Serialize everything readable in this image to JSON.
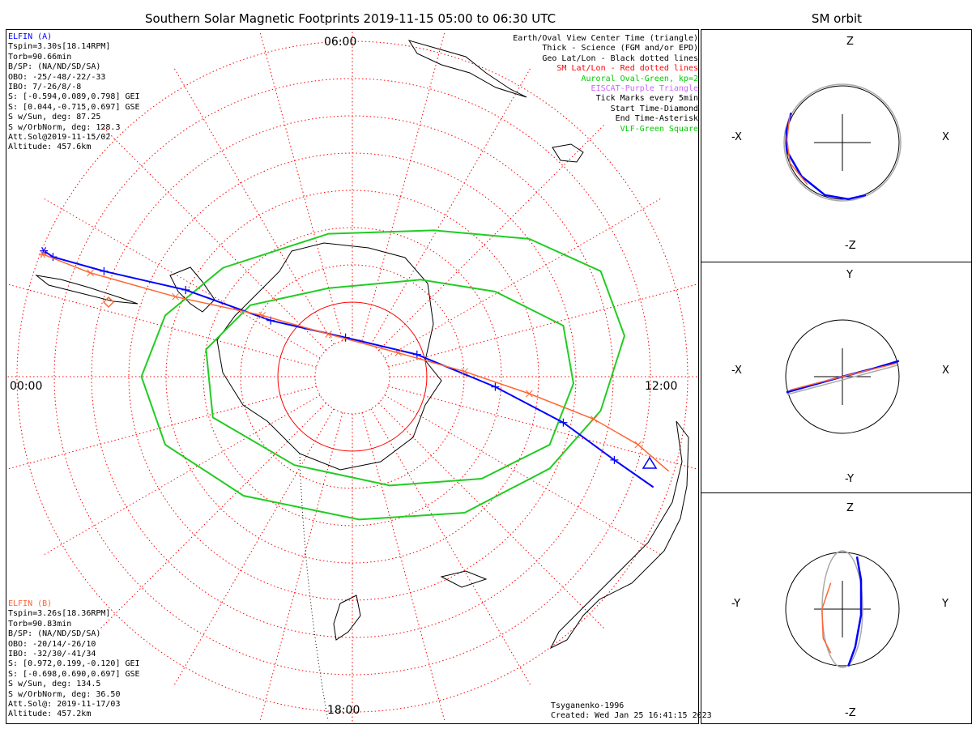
{
  "title": "Southern Solar Magnetic Footprints 2019-11-15 05:00 to 06:30 UTC",
  "orbit_title": "SM orbit",
  "hour_labels": {
    "top": "06:00",
    "left": "00:00",
    "right": "12:00",
    "bottom": "18:00"
  },
  "legend": [
    {
      "text": "Earth/Oval View Center Time (triangle)",
      "color": "#000000"
    },
    {
      "text": "Thick - Science (FGM and/or EPD)",
      "color": "#000000"
    },
    {
      "text": "Geo Lat/Lon - Black dotted lines",
      "color": "#000000"
    },
    {
      "text": "SM Lat/Lon - Red dotted lines",
      "color": "#ff0000"
    },
    {
      "text": "Auroral Oval-Green, kp=2",
      "color": "#00cc00"
    },
    {
      "text": "EISCAT-Purple Triangle",
      "color": "#cc66ff"
    },
    {
      "text": "Tick Marks every 5min",
      "color": "#000000"
    },
    {
      "text": "Start Time-Diamond",
      "color": "#000000"
    },
    {
      "text": "End Time-Asterisk",
      "color": "#000000"
    },
    {
      "text": "VLF-Green Square",
      "color": "#00cc00"
    }
  ],
  "elfin_a": {
    "name": "ELFIN (A)",
    "color": "#0000ff",
    "lines": [
      "Tspin=3.30s[18.14RPM]",
      "Torb=90.66min",
      "B/SP: (NA/ND/SD/SA)",
      "OBO: -25/-48/-22/-33",
      "IBO: 7/-26/8/-8",
      "S: [-0.594,0.089,0.798] GEI",
      "S: [0.044,-0.715,0.697] GSE",
      "S w/Sun, deg: 87.25",
      "S w/OrbNorm, deg: 128.3",
      "Att.Sol@2019-11-15/02",
      "Altitude: 457.6km"
    ]
  },
  "elfin_b": {
    "name": "ELFIN (B)",
    "color": "#ff6633",
    "lines": [
      "Tspin=3.26s[18.36RPM]",
      "Torb=90.83min",
      "B/SP: (NA/ND/SD/SA)",
      "OBO: -20/14/-26/10",
      "IBO: -32/30/-41/34",
      "S: [0.972,0.199,-0.120] GEI",
      "S: [-0.698,0.690,0.697] GSE",
      "S w/Sun, deg: 134.5",
      "S w/OrbNorm, deg: 36.50",
      "Att.Sol@: 2019-11-17/03",
      "Altitude: 457.2km"
    ]
  },
  "credits": [
    "Tsyganenko-1996",
    "Created: Wed Jan 25 16:41:15 2023"
  ],
  "panels": [
    {
      "h_left": "-X",
      "h_right": "X",
      "v_top": "Z",
      "v_bottom": "-Z"
    },
    {
      "h_left": "-X",
      "h_right": "X",
      "v_top": "Y",
      "v_bottom": "-Y"
    },
    {
      "h_left": "-Y",
      "h_right": "Y",
      "v_top": "Z",
      "v_bottom": "-Z"
    }
  ],
  "colors": {
    "elfin_a_track": "#0000ff",
    "elfin_b_track": "#ff6633",
    "sm_grid": "#ff0000",
    "geo_grid": "#000000",
    "auroral_oval": "#22cc22",
    "orbit_night": "#aaaaaa"
  },
  "chart_data": [
    {
      "type": "scatter",
      "title": "Southern Solar Magnetic Footprints 2019-11-15 05:00 to 06:30 UTC",
      "description_axes": "polar MLT dial",
      "mlt_tick_labels": [
        "00:00",
        "06:00",
        "12:00",
        "18:00"
      ],
      "sm_latitude_rings": 9,
      "series": [
        {
          "name": "ELFIN (A)",
          "x": [
            -0.907,
            -0.88,
            -0.73,
            -0.49,
            -0.24,
            -0.02,
            0.19,
            0.42,
            0.62,
            0.77,
            0.885
          ],
          "y": [
            0.37,
            0.352,
            0.31,
            0.255,
            0.165,
            0.115,
            0.065,
            -0.03,
            -0.135,
            -0.245,
            -0.325
          ]
        },
        {
          "name": "ELFIN (B)",
          "x": [
            -0.91,
            -0.77,
            -0.52,
            -0.265,
            -0.07,
            0.135,
            0.33,
            0.52,
            0.71,
            0.84,
            0.93
          ],
          "y": [
            0.36,
            0.305,
            0.235,
            0.18,
            0.125,
            0.07,
            0.015,
            -0.05,
            -0.125,
            -0.2,
            -0.278
          ]
        }
      ],
      "auroral_oval": {
        "kp": 2,
        "outer": [
          [
            0.52,
            0.405
          ],
          [
            0.73,
            0.31
          ],
          [
            0.8,
            0.12
          ],
          [
            0.73,
            -0.1
          ],
          [
            0.58,
            -0.27
          ],
          [
            0.33,
            -0.4
          ],
          [
            0.02,
            -0.42
          ],
          [
            -0.32,
            -0.35
          ],
          [
            -0.55,
            -0.2
          ],
          [
            -0.62,
            0.0
          ],
          [
            -0.55,
            0.18
          ],
          [
            -0.38,
            0.32
          ],
          [
            -0.07,
            0.42
          ],
          [
            0.24,
            0.43
          ],
          [
            0.52,
            0.405
          ]
        ],
        "inner": [
          [
            0.42,
            0.25
          ],
          [
            0.62,
            0.15
          ],
          [
            0.65,
            -0.02
          ],
          [
            0.58,
            -0.2
          ],
          [
            0.38,
            -0.3
          ],
          [
            0.11,
            -0.32
          ],
          [
            -0.17,
            -0.26
          ],
          [
            -0.41,
            -0.12
          ],
          [
            -0.43,
            0.08
          ],
          [
            -0.3,
            0.21
          ],
          [
            -0.07,
            0.26
          ],
          [
            0.2,
            0.285
          ],
          [
            0.42,
            0.25
          ]
        ]
      }
    },
    {
      "type": "line",
      "title": "SM orbit",
      "xlabel": "X",
      "ylabel": "Z",
      "xlim": [
        -1,
        1
      ],
      "ylim": [
        -1,
        1
      ],
      "series": [
        {
          "name": "ELFIN (A)",
          "x": [
            -0.88,
            -0.96,
            -0.95,
            -0.7,
            -0.3,
            0.1,
            0.4
          ],
          "y": [
            0.51,
            0.2,
            -0.15,
            -0.58,
            -0.9,
            -0.97,
            -0.9
          ]
        },
        {
          "name": "ELFIN (B)",
          "x": [
            -0.9,
            -0.95,
            -0.9,
            -0.6
          ],
          "y": [
            0.48,
            0.05,
            -0.35,
            -0.72
          ]
        }
      ]
    },
    {
      "type": "line",
      "title": "SM orbit",
      "xlabel": "X",
      "ylabel": "Y",
      "xlim": [
        -1,
        1
      ],
      "ylim": [
        -1,
        1
      ],
      "series": [
        {
          "name": "ELFIN (A)",
          "x": [
            -0.96,
            -0.5,
            0.0,
            0.5,
            0.97
          ],
          "y": [
            -0.27,
            -0.14,
            0.0,
            0.13,
            0.27
          ]
        },
        {
          "name": "ELFIN (B)",
          "x": [
            -0.9,
            -0.4,
            0.2,
            0.94
          ],
          "y": [
            -0.23,
            -0.1,
            0.05,
            0.23
          ]
        }
      ]
    },
    {
      "type": "line",
      "title": "SM orbit",
      "xlabel": "Y",
      "ylabel": "Z",
      "xlim": [
        -1,
        1
      ],
      "ylim": [
        -1,
        1
      ],
      "series": [
        {
          "name": "ELFIN (A)",
          "x": [
            0.25,
            0.32,
            0.32,
            0.22,
            0.1
          ],
          "y": [
            0.9,
            0.5,
            -0.1,
            -0.65,
            -0.98
          ]
        },
        {
          "name": "ELFIN (B)",
          "x": [
            -0.2,
            -0.35,
            -0.33,
            -0.2
          ],
          "y": [
            0.45,
            0.0,
            -0.5,
            -0.75
          ]
        }
      ]
    }
  ]
}
